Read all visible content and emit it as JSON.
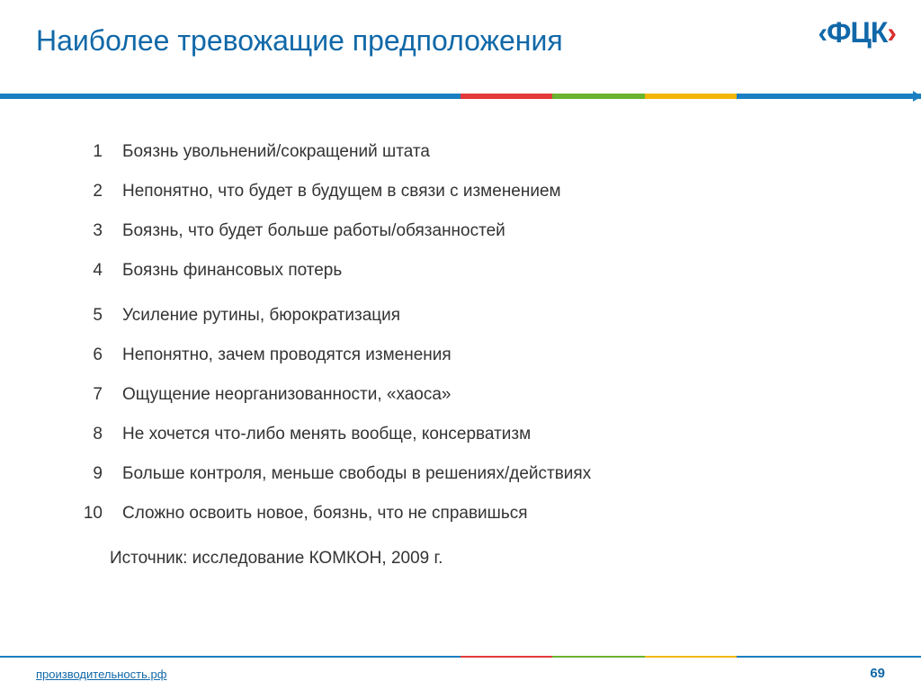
{
  "header": {
    "title": "Наиболее тревожащие предположения",
    "logo": {
      "open_bracket": "‹",
      "text": "ФЦК",
      "close_bracket": "›"
    }
  },
  "divider": {
    "segments": [
      {
        "color": "#1a7fc2",
        "width": "50%"
      },
      {
        "color": "#e33a3a",
        "width": "10%"
      },
      {
        "color": "#6ab42f",
        "width": "10%"
      },
      {
        "color": "#f2b60a",
        "width": "10%"
      },
      {
        "color": "#1a7fc2",
        "width": "20%"
      }
    ]
  },
  "list": {
    "items": [
      {
        "num": "1",
        "text": "Боязнь увольнений/сокращений штата"
      },
      {
        "num": "2",
        "text": "Непонятно, что будет в будущем в связи с изменением"
      },
      {
        "num": "3",
        "text": "Боязнь, что будет больше работы/обязанностей"
      },
      {
        "num": "4",
        "text": "Боязнь финансовых потерь"
      },
      {
        "num": "5",
        "text": "Усиление рутины, бюрократизация"
      },
      {
        "num": "6",
        "text": "Непонятно, зачем проводятся изменения"
      },
      {
        "num": "7",
        "text": "Ощущение неорганизованности, «хаоса»"
      },
      {
        "num": "8",
        "text": "Не хочется что-либо менять вообще, консерватизм"
      },
      {
        "num": "9",
        "text": "Больше контроля, меньше свободы в решениях/действиях"
      },
      {
        "num": "10",
        "text": "Сложно освоить новое, боязнь, что не справишься"
      }
    ]
  },
  "source": "Источник: исследование КОМКОН, 2009 г.",
  "footer": {
    "link": "производительность.рф",
    "page": "69"
  },
  "colors": {
    "title": "#1068a8",
    "body_text": "#333333",
    "background": "#ffffff"
  },
  "typography": {
    "title_fontsize": 32,
    "body_fontsize": 19,
    "footer_fontsize": 13
  }
}
